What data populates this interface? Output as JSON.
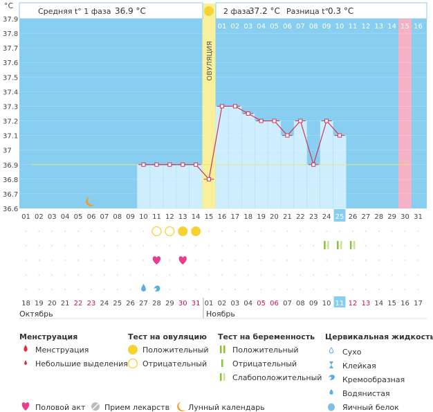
{
  "chart_data": {
    "type": "line",
    "unit_label": "°C",
    "ylim": [
      36.6,
      37.9
    ],
    "yticks": [
      "37.9",
      "37.8",
      "37.7",
      "37.6",
      "37.5",
      "37.4",
      "37.3",
      "37.2",
      "37.1",
      "37",
      "36.9",
      "36.8",
      "36.7",
      "36.6"
    ],
    "top_days": [
      "01",
      "02",
      "03",
      "04",
      "05",
      "06",
      "07",
      "08",
      "09",
      "10",
      "11",
      "12",
      "13",
      "14",
      "15",
      "16"
    ],
    "bottom_days": [
      "01",
      "02",
      "03",
      "04",
      "05",
      "06",
      "07",
      "08",
      "09",
      "10",
      "11",
      "12",
      "13",
      "14",
      "15",
      "16",
      "17",
      "18",
      "19",
      "20",
      "21",
      "22",
      "23",
      "24",
      "25",
      "26",
      "27",
      "28",
      "29",
      "30",
      "31"
    ],
    "today_cycle_day": "25",
    "bottom_dates": [
      "18",
      "19",
      "20",
      "21",
      "22",
      "23",
      "24",
      "25",
      "26",
      "27",
      "28",
      "29",
      "30",
      "31",
      "01",
      "02",
      "03",
      "04",
      "05",
      "06",
      "07",
      "08",
      "09",
      "10",
      "11",
      "12",
      "13",
      "14",
      "15",
      "16",
      "17"
    ],
    "red_dates_index": [
      4,
      5,
      12,
      13,
      18,
      19,
      25,
      26
    ],
    "today_date_index": 24,
    "month_labels": [
      "Октябрь",
      "Ноябрь"
    ],
    "phase1_label": "Средняя t° 1 фаза",
    "phase1_value": "36.9 °C",
    "phase2_label": "2 фаза",
    "phase2_value": "37.2 °C",
    "diff_label": "Разница t°",
    "diff_value": "0.3 °C",
    "ovulation_label": "ОВУЛЯЦИЯ",
    "ovulation_day": 15,
    "coverline": 36.9,
    "highlight_day": 30,
    "temperatures": [
      {
        "day": 10,
        "t": 36.9
      },
      {
        "day": 11,
        "t": 36.9
      },
      {
        "day": 12,
        "t": 36.9
      },
      {
        "day": 13,
        "t": 36.9
      },
      {
        "day": 14,
        "t": 36.9
      },
      {
        "day": 15,
        "t": 36.8
      },
      {
        "day": 16,
        "t": 37.3
      },
      {
        "day": 17,
        "t": 37.3
      },
      {
        "day": 18,
        "t": 37.25
      },
      {
        "day": 19,
        "t": 37.2
      },
      {
        "day": 20,
        "t": 37.2
      },
      {
        "day": 21,
        "t": 37.1
      },
      {
        "day": 22,
        "t": 37.2
      },
      {
        "day": 23,
        "t": 36.9
      },
      {
        "day": 24,
        "t": 37.2
      },
      {
        "day": 25,
        "t": 37.1
      }
    ],
    "moon_day": 6,
    "ovulation_tests": [
      {
        "day": 11,
        "result": "negative"
      },
      {
        "day": 12,
        "result": "negative"
      },
      {
        "day": 13,
        "result": "positive"
      },
      {
        "day": 14,
        "result": "positive"
      }
    ],
    "pregnancy_tests": [
      {
        "day": 24,
        "result": "weak"
      },
      {
        "day": 25,
        "result": "weak"
      },
      {
        "day": 26,
        "result": "weak"
      }
    ],
    "intercourse_days": [
      11,
      13
    ],
    "cervical_days": [
      10,
      11
    ]
  },
  "legend": {
    "menstruation": {
      "title": "Менструация",
      "items": [
        "Менструация",
        "Небольшие выделения"
      ]
    },
    "ovulation_test": {
      "title": "Тест на овуляцию",
      "items": [
        "Положительный",
        "Отрицательный"
      ]
    },
    "pregnancy_test": {
      "title": "Тест на беременность",
      "items": [
        "Положительный",
        "Отрицательный",
        "Слабоположительный"
      ]
    },
    "cervical": {
      "title": "Цервикальная жидкость",
      "items": [
        "Сухо",
        "Клейкая",
        "Кремообразная",
        "Водянистая",
        "Яичный белок"
      ]
    },
    "bottom": [
      "Половой акт",
      "Прием лекарств",
      "Лунный календарь"
    ]
  },
  "colors": {
    "plot_bg": "#87cef0",
    "bar": "#cfeefd",
    "bar_border": "#a7dcf4",
    "line": "#cc3355",
    "ovulation": "#f8f09a",
    "ovulation_marker": "#f7d235",
    "highlight": "#f5b1c6",
    "red_date": "#d0124f",
    "heart": "#ea3d8e",
    "pregnancy": "#8ac432",
    "drop": "#5aaee4",
    "moon": "#f29a1e"
  }
}
